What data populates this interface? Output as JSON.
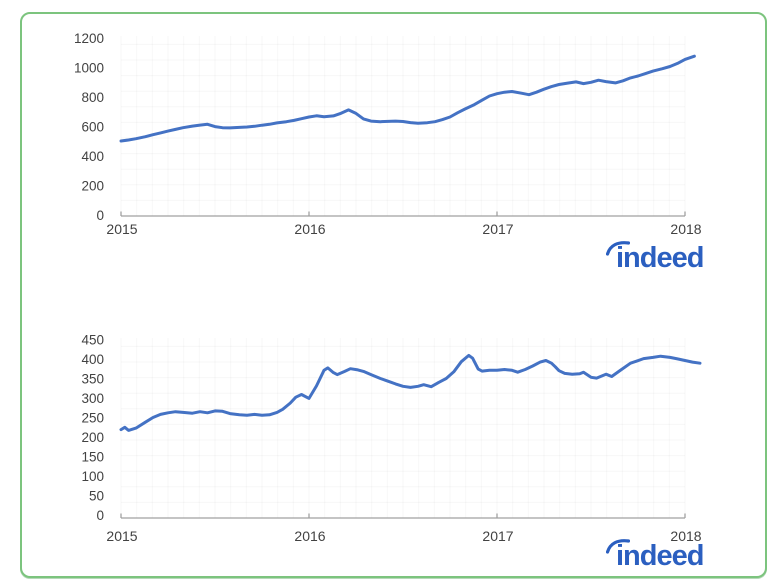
{
  "page": {
    "background": "#ffffff",
    "card_border_color": "#7cc47e"
  },
  "branding": {
    "logo_text": "indeed",
    "logo_color": "#2b5fc0"
  },
  "chart_data": [
    {
      "type": "line",
      "title": "",
      "xlabel": "",
      "ylabel": "",
      "x_ticks": [
        2015,
        2016,
        2017,
        2018
      ],
      "y_ticks": [
        0,
        200,
        400,
        600,
        800,
        1000,
        1200
      ],
      "xlim": [
        2015,
        2018.1
      ],
      "ylim": [
        0,
        1200
      ],
      "grid": "faint",
      "legend": "none",
      "line_color": "#4472c4",
      "watermark": "indeed",
      "series": [
        {
          "name": "",
          "points": [
            [
              2015.0,
              505
            ],
            [
              2015.04,
              512
            ],
            [
              2015.08,
              521
            ],
            [
              2015.13,
              534
            ],
            [
              2015.17,
              548
            ],
            [
              2015.21,
              560
            ],
            [
              2015.25,
              572
            ],
            [
              2015.29,
              584
            ],
            [
              2015.33,
              595
            ],
            [
              2015.38,
              606
            ],
            [
              2015.42,
              613
            ],
            [
              2015.46,
              618
            ],
            [
              2015.5,
              603
            ],
            [
              2015.54,
              595
            ],
            [
              2015.58,
              594
            ],
            [
              2015.63,
              597
            ],
            [
              2015.67,
              600
            ],
            [
              2015.71,
              605
            ],
            [
              2015.75,
              612
            ],
            [
              2015.79,
              618
            ],
            [
              2015.83,
              628
            ],
            [
              2015.88,
              636
            ],
            [
              2015.92,
              645
            ],
            [
              2015.96,
              656
            ],
            [
              2016.0,
              668
            ],
            [
              2016.04,
              676
            ],
            [
              2016.08,
              670
            ],
            [
              2016.13,
              675
            ],
            [
              2016.17,
              693
            ],
            [
              2016.21,
              716
            ],
            [
              2016.25,
              692
            ],
            [
              2016.29,
              655
            ],
            [
              2016.33,
              640
            ],
            [
              2016.38,
              636
            ],
            [
              2016.42,
              638
            ],
            [
              2016.46,
              640
            ],
            [
              2016.5,
              637
            ],
            [
              2016.54,
              630
            ],
            [
              2016.58,
              626
            ],
            [
              2016.63,
              629
            ],
            [
              2016.67,
              636
            ],
            [
              2016.71,
              650
            ],
            [
              2016.75,
              668
            ],
            [
              2016.79,
              696
            ],
            [
              2016.83,
              722
            ],
            [
              2016.88,
              752
            ],
            [
              2016.92,
              782
            ],
            [
              2016.96,
              810
            ],
            [
              2017.0,
              826
            ],
            [
              2017.04,
              836
            ],
            [
              2017.08,
              841
            ],
            [
              2017.13,
              829
            ],
            [
              2017.17,
              819
            ],
            [
              2017.21,
              836
            ],
            [
              2017.25,
              856
            ],
            [
              2017.29,
              874
            ],
            [
              2017.33,
              888
            ],
            [
              2017.38,
              898
            ],
            [
              2017.42,
              906
            ],
            [
              2017.46,
              894
            ],
            [
              2017.5,
              903
            ],
            [
              2017.54,
              917
            ],
            [
              2017.58,
              908
            ],
            [
              2017.63,
              899
            ],
            [
              2017.67,
              913
            ],
            [
              2017.71,
              933
            ],
            [
              2017.75,
              946
            ],
            [
              2017.79,
              962
            ],
            [
              2017.83,
              979
            ],
            [
              2017.88,
              995
            ],
            [
              2017.92,
              1010
            ],
            [
              2017.96,
              1031
            ],
            [
              2018.0,
              1058
            ],
            [
              2018.05,
              1080
            ]
          ]
        }
      ]
    },
    {
      "type": "line",
      "title": "",
      "xlabel": "",
      "ylabel": "",
      "x_ticks": [
        2015,
        2016,
        2017,
        2018
      ],
      "y_ticks": [
        0,
        50,
        100,
        150,
        200,
        250,
        300,
        350,
        400,
        450
      ],
      "xlim": [
        2015,
        2018.1
      ],
      "ylim": [
        0,
        450
      ],
      "grid": "faint",
      "legend": "none",
      "line_color": "#4472c4",
      "watermark": "indeed",
      "series": [
        {
          "name": "",
          "points": [
            [
              2015.0,
              220
            ],
            [
              2015.02,
              226
            ],
            [
              2015.04,
              218
            ],
            [
              2015.08,
              224
            ],
            [
              2015.13,
              239
            ],
            [
              2015.17,
              251
            ],
            [
              2015.21,
              259
            ],
            [
              2015.25,
              263
            ],
            [
              2015.29,
              266
            ],
            [
              2015.33,
              264
            ],
            [
              2015.38,
              262
            ],
            [
              2015.42,
              266
            ],
            [
              2015.46,
              263
            ],
            [
              2015.5,
              268
            ],
            [
              2015.54,
              267
            ],
            [
              2015.58,
              261
            ],
            [
              2015.63,
              258
            ],
            [
              2015.67,
              257
            ],
            [
              2015.71,
              259
            ],
            [
              2015.75,
              257
            ],
            [
              2015.79,
              258
            ],
            [
              2015.83,
              264
            ],
            [
              2015.86,
              272
            ],
            [
              2015.9,
              288
            ],
            [
              2015.93,
              303
            ],
            [
              2015.96,
              310
            ],
            [
              2016.0,
              300
            ],
            [
              2016.04,
              332
            ],
            [
              2016.08,
              372
            ],
            [
              2016.1,
              378
            ],
            [
              2016.13,
              366
            ],
            [
              2016.15,
              361
            ],
            [
              2016.19,
              369
            ],
            [
              2016.22,
              376
            ],
            [
              2016.26,
              373
            ],
            [
              2016.29,
              369
            ],
            [
              2016.33,
              361
            ],
            [
              2016.38,
              351
            ],
            [
              2016.42,
              344
            ],
            [
              2016.46,
              337
            ],
            [
              2016.5,
              331
            ],
            [
              2016.54,
              328
            ],
            [
              2016.58,
              331
            ],
            [
              2016.61,
              335
            ],
            [
              2016.65,
              330
            ],
            [
              2016.69,
              341
            ],
            [
              2016.73,
              351
            ],
            [
              2016.77,
              368
            ],
            [
              2016.81,
              394
            ],
            [
              2016.85,
              410
            ],
            [
              2016.87,
              403
            ],
            [
              2016.9,
              375
            ],
            [
              2016.92,
              370
            ],
            [
              2016.96,
              372
            ],
            [
              2017.0,
              372
            ],
            [
              2017.04,
              374
            ],
            [
              2017.08,
              372
            ],
            [
              2017.11,
              367
            ],
            [
              2017.15,
              374
            ],
            [
              2017.19,
              383
            ],
            [
              2017.23,
              393
            ],
            [
              2017.26,
              397
            ],
            [
              2017.29,
              390
            ],
            [
              2017.31,
              381
            ],
            [
              2017.33,
              371
            ],
            [
              2017.36,
              364
            ],
            [
              2017.4,
              362
            ],
            [
              2017.44,
              363
            ],
            [
              2017.46,
              367
            ],
            [
              2017.5,
              354
            ],
            [
              2017.53,
              352
            ],
            [
              2017.58,
              362
            ],
            [
              2017.61,
              356
            ],
            [
              2017.65,
              370
            ],
            [
              2017.71,
              390
            ],
            [
              2017.74,
              395
            ],
            [
              2017.78,
              402
            ],
            [
              2017.83,
              405
            ],
            [
              2017.87,
              408
            ],
            [
              2017.92,
              405
            ],
            [
              2017.96,
              401
            ],
            [
              2018.0,
              397
            ],
            [
              2018.04,
              393
            ],
            [
              2018.08,
              390
            ]
          ]
        }
      ]
    }
  ]
}
